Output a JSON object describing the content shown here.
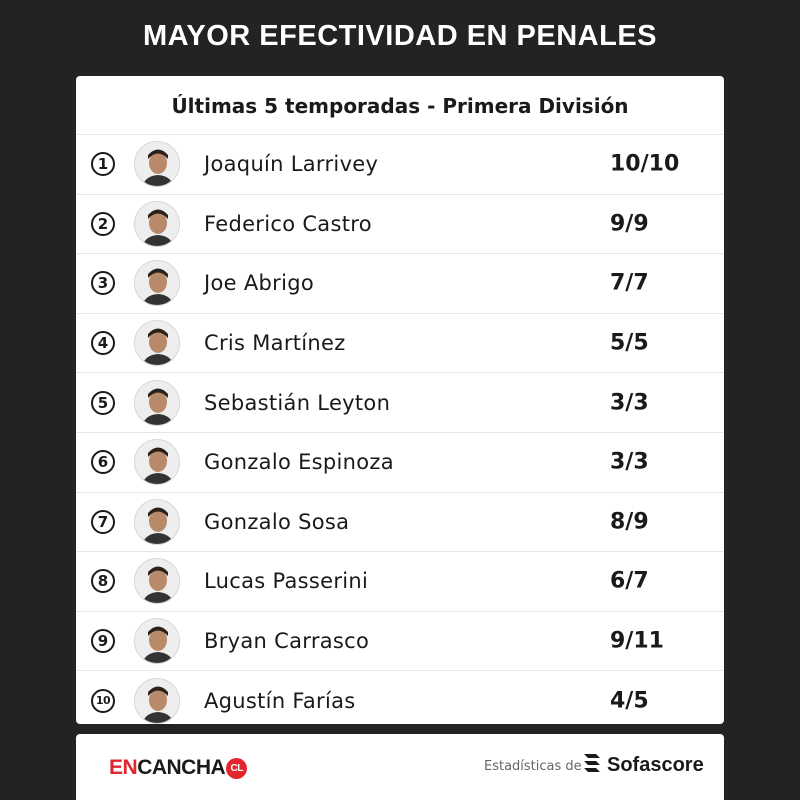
{
  "title": "MAYOR EFECTIVIDAD EN PENALES",
  "subtitle": "Últimas 5 temporadas - Primera División",
  "rows": [
    {
      "rank": "1",
      "name": "Joaquín Larrivey",
      "score": "10/10"
    },
    {
      "rank": "2",
      "name": "Federico Castro",
      "score": "9/9"
    },
    {
      "rank": "3",
      "name": "Joe Abrigo",
      "score": "7/7"
    },
    {
      "rank": "4",
      "name": "Cris Martínez",
      "score": "5/5"
    },
    {
      "rank": "5",
      "name": "Sebastián Leyton",
      "score": "3/3"
    },
    {
      "rank": "6",
      "name": "Gonzalo Espinoza",
      "score": "3/3"
    },
    {
      "rank": "7",
      "name": "Gonzalo Sosa",
      "score": "8/9"
    },
    {
      "rank": "8",
      "name": "Lucas Passerini",
      "score": "6/7"
    },
    {
      "rank": "9",
      "name": "Bryan Carrasco",
      "score": "9/11"
    },
    {
      "rank": "10",
      "name": "Agustín Farías",
      "score": "4/5"
    }
  ],
  "footer": {
    "brand_en": "EN",
    "brand_cancha": "CANCHA",
    "brand_cl": "CL",
    "stats_label": "Estadísticas de",
    "sofascore": "Sofascore"
  },
  "colors": {
    "background": "#232323",
    "accent": "#e3262e",
    "card": "#ffffff",
    "text": "#1a1a1a"
  },
  "icons": {
    "avatar": "player-photo",
    "sofascore_logo": "sofascore-logo-icon"
  }
}
